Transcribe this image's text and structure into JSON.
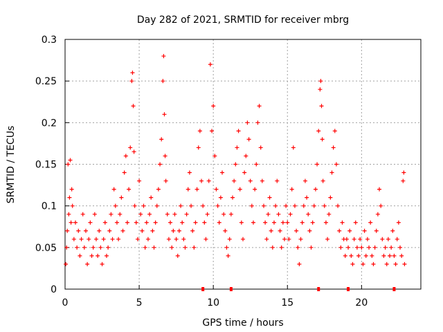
{
  "chart_data": {
    "type": "scatter",
    "title": "Day 282 of 2021, SRMTID for receiver mbrg",
    "xlabel": "GPS time / hours",
    "ylabel": "SRMTID / TECUs",
    "xlim": [
      0,
      24
    ],
    "ylim": [
      0,
      0.3
    ],
    "x_ticks": [
      0,
      5,
      10,
      15,
      20
    ],
    "x_tick_labels": [
      "0",
      "5",
      "10",
      "15",
      "20"
    ],
    "y_ticks": [
      0,
      0.05,
      0.1,
      0.15,
      0.2,
      0.25,
      0.3
    ],
    "y_tick_labels": [
      "0",
      "0.05",
      "0.1",
      "0.15",
      "0.2",
      "0.25",
      "0.3"
    ],
    "grid": true,
    "marker": "+",
    "color": "#ff0000",
    "series": [
      {
        "name": "SRMTID",
        "points": [
          [
            0.05,
            0.03
          ],
          [
            0.1,
            0.05
          ],
          [
            0.15,
            0.07
          ],
          [
            0.2,
            0.15
          ],
          [
            0.25,
            0.09
          ],
          [
            0.3,
            0.11
          ],
          [
            0.35,
            0.155
          ],
          [
            0.4,
            0.08
          ],
          [
            0.45,
            0.12
          ],
          [
            0.5,
            0.1
          ],
          [
            0.6,
            0.06
          ],
          [
            0.7,
            0.08
          ],
          [
            0.8,
            0.05
          ],
          [
            0.9,
            0.07
          ],
          [
            1.0,
            0.04
          ],
          [
            1.1,
            0.06
          ],
          [
            1.2,
            0.09
          ],
          [
            1.3,
            0.05
          ],
          [
            1.4,
            0.07
          ],
          [
            1.5,
            0.03
          ],
          [
            1.6,
            0.06
          ],
          [
            1.7,
            0.08
          ],
          [
            1.8,
            0.04
          ],
          [
            1.9,
            0.05
          ],
          [
            2.0,
            0.09
          ],
          [
            2.1,
            0.06
          ],
          [
            2.2,
            0.04
          ],
          [
            2.3,
            0.07
          ],
          [
            2.4,
            0.05
          ],
          [
            2.5,
            0.03
          ],
          [
            2.6,
            0.06
          ],
          [
            2.7,
            0.08
          ],
          [
            2.8,
            0.04
          ],
          [
            2.9,
            0.05
          ],
          [
            3.0,
            0.07
          ],
          [
            3.1,
            0.09
          ],
          [
            3.2,
            0.06
          ],
          [
            3.3,
            0.12
          ],
          [
            3.4,
            0.1
          ],
          [
            3.5,
            0.08
          ],
          [
            3.6,
            0.06
          ],
          [
            3.7,
            0.09
          ],
          [
            3.8,
            0.11
          ],
          [
            3.9,
            0.07
          ],
          [
            4.0,
            0.14
          ],
          [
            4.1,
            0.16
          ],
          [
            4.2,
            0.08
          ],
          [
            4.3,
            0.12
          ],
          [
            4.4,
            0.17
          ],
          [
            4.5,
            0.25
          ],
          [
            4.55,
            0.26
          ],
          [
            4.6,
            0.22
          ],
          [
            4.65,
            0.165
          ],
          [
            4.7,
            0.1
          ],
          [
            4.8,
            0.08
          ],
          [
            4.9,
            0.06
          ],
          [
            5.0,
            0.13
          ],
          [
            5.1,
            0.09
          ],
          [
            5.2,
            0.07
          ],
          [
            5.3,
            0.1
          ],
          [
            5.4,
            0.05
          ],
          [
            5.5,
            0.08
          ],
          [
            5.6,
            0.06
          ],
          [
            5.7,
            0.09
          ],
          [
            5.8,
            0.11
          ],
          [
            5.9,
            0.07
          ],
          [
            6.0,
            0.05
          ],
          [
            6.1,
            0.08
          ],
          [
            6.2,
            0.1
          ],
          [
            6.3,
            0.12
          ],
          [
            6.4,
            0.15
          ],
          [
            6.5,
            0.18
          ],
          [
            6.6,
            0.25
          ],
          [
            6.65,
            0.28
          ],
          [
            6.7,
            0.21
          ],
          [
            6.75,
            0.16
          ],
          [
            6.8,
            0.13
          ],
          [
            6.9,
            0.09
          ],
          [
            7.0,
            0.06
          ],
          [
            7.1,
            0.08
          ],
          [
            7.2,
            0.05
          ],
          [
            7.3,
            0.07
          ],
          [
            7.4,
            0.09
          ],
          [
            7.5,
            0.06
          ],
          [
            7.6,
            0.04
          ],
          [
            7.7,
            0.07
          ],
          [
            7.8,
            0.1
          ],
          [
            7.9,
            0.08
          ],
          [
            8.0,
            0.06
          ],
          [
            8.1,
            0.05
          ],
          [
            8.2,
            0.09
          ],
          [
            8.3,
            0.12
          ],
          [
            8.4,
            0.14
          ],
          [
            8.5,
            0.1
          ],
          [
            8.6,
            0.07
          ],
          [
            8.7,
            0.05
          ],
          [
            8.8,
            0.08
          ],
          [
            8.9,
            0.12
          ],
          [
            9.0,
            0.17
          ],
          [
            9.1,
            0.19
          ],
          [
            9.2,
            0.13
          ],
          [
            9.3,
            0.1
          ],
          [
            9.4,
            0.08
          ],
          [
            9.5,
            0.06
          ],
          [
            9.6,
            0.09
          ],
          [
            9.7,
            0.13
          ],
          [
            9.8,
            0.27
          ],
          [
            9.9,
            0.19
          ],
          [
            10.0,
            0.22
          ],
          [
            10.1,
            0.16
          ],
          [
            10.2,
            0.12
          ],
          [
            10.3,
            0.1
          ],
          [
            10.4,
            0.08
          ],
          [
            10.5,
            0.11
          ],
          [
            10.6,
            0.14
          ],
          [
            10.7,
            0.09
          ],
          [
            10.8,
            0.07
          ],
          [
            10.9,
            0.05
          ],
          [
            11.0,
            0.04
          ],
          [
            11.1,
            0.06
          ],
          [
            11.2,
            0.09
          ],
          [
            11.3,
            0.11
          ],
          [
            11.4,
            0.13
          ],
          [
            11.5,
            0.15
          ],
          [
            11.6,
            0.17
          ],
          [
            11.7,
            0.19
          ],
          [
            11.8,
            0.12
          ],
          [
            11.9,
            0.08
          ],
          [
            12.0,
            0.06
          ],
          [
            12.1,
            0.14
          ],
          [
            12.2,
            0.16
          ],
          [
            12.3,
            0.2
          ],
          [
            12.4,
            0.18
          ],
          [
            12.5,
            0.13
          ],
          [
            12.6,
            0.1
          ],
          [
            12.7,
            0.08
          ],
          [
            12.8,
            0.12
          ],
          [
            12.9,
            0.15
          ],
          [
            13.0,
            0.2
          ],
          [
            13.1,
            0.22
          ],
          [
            13.2,
            0.17
          ],
          [
            13.3,
            0.13
          ],
          [
            13.4,
            0.1
          ],
          [
            13.5,
            0.08
          ],
          [
            13.6,
            0.06
          ],
          [
            13.7,
            0.09
          ],
          [
            13.8,
            0.11
          ],
          [
            13.9,
            0.07
          ],
          [
            14.0,
            0.05
          ],
          [
            14.1,
            0.08
          ],
          [
            14.2,
            0.1
          ],
          [
            14.3,
            0.13
          ],
          [
            14.4,
            0.09
          ],
          [
            14.5,
            0.07
          ],
          [
            14.6,
            0.05
          ],
          [
            14.7,
            0.08
          ],
          [
            14.8,
            0.06
          ],
          [
            14.9,
            0.1
          ],
          [
            15.0,
            0.08
          ],
          [
            15.1,
            0.06
          ],
          [
            15.2,
            0.09
          ],
          [
            15.3,
            0.12
          ],
          [
            15.4,
            0.17
          ],
          [
            15.5,
            0.1
          ],
          [
            15.6,
            0.07
          ],
          [
            15.7,
            0.05
          ],
          [
            15.8,
            0.03
          ],
          [
            15.9,
            0.06
          ],
          [
            16.0,
            0.08
          ],
          [
            16.1,
            0.1
          ],
          [
            16.2,
            0.13
          ],
          [
            16.3,
            0.11
          ],
          [
            16.4,
            0.09
          ],
          [
            16.5,
            0.07
          ],
          [
            16.6,
            0.05
          ],
          [
            16.7,
            0.08
          ],
          [
            16.8,
            0.1
          ],
          [
            16.9,
            0.12
          ],
          [
            17.0,
            0.15
          ],
          [
            17.1,
            0.19
          ],
          [
            17.2,
            0.24
          ],
          [
            17.25,
            0.25
          ],
          [
            17.3,
            0.22
          ],
          [
            17.35,
            0.18
          ],
          [
            17.4,
            0.13
          ],
          [
            17.5,
            0.1
          ],
          [
            17.6,
            0.08
          ],
          [
            17.7,
            0.06
          ],
          [
            17.8,
            0.09
          ],
          [
            17.9,
            0.11
          ],
          [
            18.0,
            0.14
          ],
          [
            18.1,
            0.17
          ],
          [
            18.2,
            0.19
          ],
          [
            18.3,
            0.15
          ],
          [
            18.4,
            0.1
          ],
          [
            18.5,
            0.07
          ],
          [
            18.6,
            0.05
          ],
          [
            18.7,
            0.08
          ],
          [
            18.8,
            0.06
          ],
          [
            18.9,
            0.04
          ],
          [
            19.0,
            0.06
          ],
          [
            19.1,
            0.05
          ],
          [
            19.2,
            0.07
          ],
          [
            19.3,
            0.04
          ],
          [
            19.4,
            0.03
          ],
          [
            19.5,
            0.06
          ],
          [
            19.6,
            0.08
          ],
          [
            19.7,
            0.05
          ],
          [
            19.8,
            0.04
          ],
          [
            19.9,
            0.06
          ],
          [
            20.0,
            0.05
          ],
          [
            20.1,
            0.03
          ],
          [
            20.2,
            0.07
          ],
          [
            20.3,
            0.04
          ],
          [
            20.4,
            0.06
          ],
          [
            20.5,
            0.05
          ],
          [
            20.6,
            0.08
          ],
          [
            20.7,
            0.04
          ],
          [
            20.8,
            0.03
          ],
          [
            20.9,
            0.05
          ],
          [
            21.0,
            0.07
          ],
          [
            21.1,
            0.09
          ],
          [
            21.2,
            0.12
          ],
          [
            21.3,
            0.1
          ],
          [
            21.4,
            0.06
          ],
          [
            21.5,
            0.04
          ],
          [
            21.6,
            0.05
          ],
          [
            21.7,
            0.03
          ],
          [
            21.8,
            0.06
          ],
          [
            21.9,
            0.04
          ],
          [
            22.0,
            0.05
          ],
          [
            22.1,
            0.07
          ],
          [
            22.2,
            0.04
          ],
          [
            22.3,
            0.03
          ],
          [
            22.4,
            0.06
          ],
          [
            22.5,
            0.08
          ],
          [
            22.6,
            0.05
          ],
          [
            22.7,
            0.04
          ],
          [
            22.8,
            0.13
          ],
          [
            22.85,
            0.14
          ],
          [
            22.9,
            0.03
          ]
        ]
      }
    ],
    "gap_markers_x": [
      9.3,
      11.2,
      17.1,
      19.1,
      22.2
    ]
  }
}
